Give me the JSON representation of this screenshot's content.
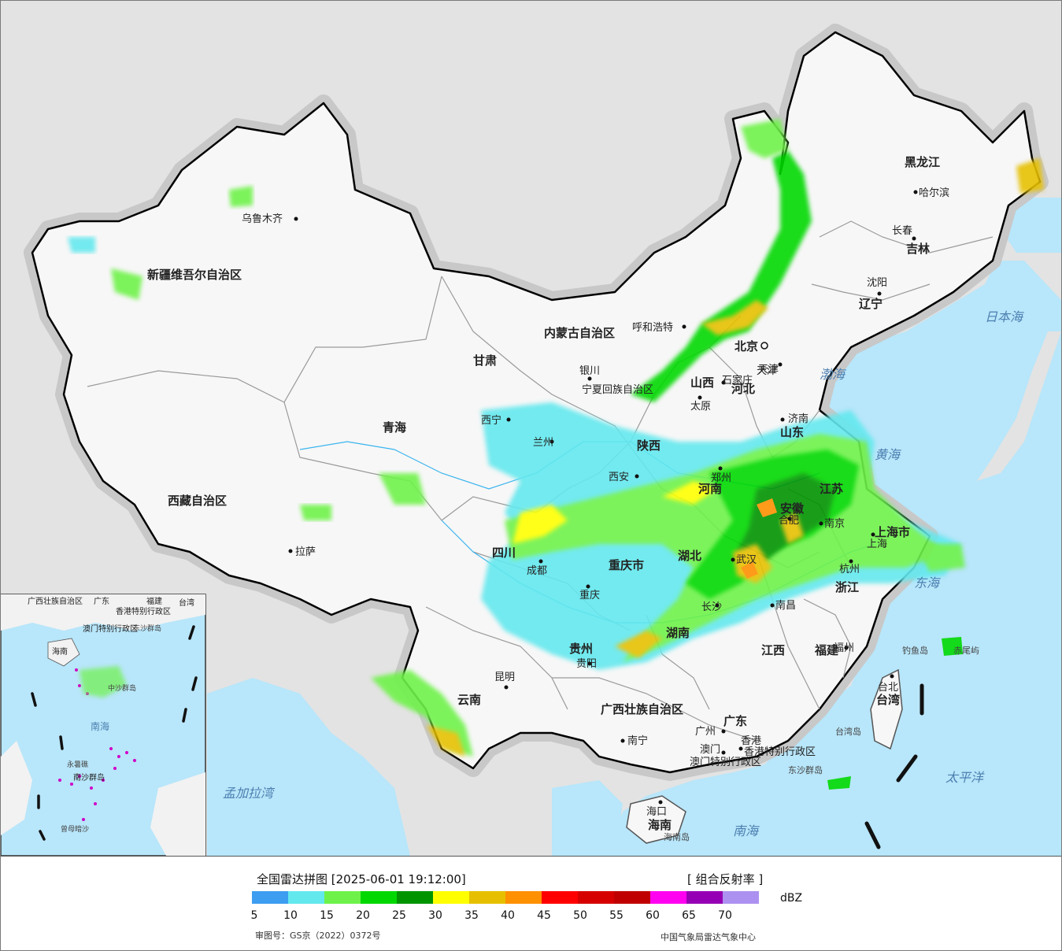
{
  "legend": {
    "title": "全国雷达拼图 [2025-06-01 19:12:00]",
    "product": "[ 组合反射率 ]",
    "unit": "dBZ",
    "ticks": [
      "5",
      "10",
      "15",
      "20",
      "25",
      "30",
      "35",
      "40",
      "45",
      "50",
      "55",
      "60",
      "65",
      "70"
    ],
    "colors": [
      "#3d9df0",
      "#63e8ee",
      "#6ef24a",
      "#00d800",
      "#009400",
      "#ffff00",
      "#e6c000",
      "#ff9000",
      "#ff0000",
      "#d60000",
      "#c00000",
      "#ff00f0",
      "#9600b4",
      "#ad91f0"
    ],
    "approval": "审图号：GS京（2022）0372号",
    "source": "中国气象局雷达气象中心"
  },
  "map": {
    "colors": {
      "land": "#f7f7f7",
      "outside": "#e3e3e3",
      "sea": "#b8e6fa",
      "border": "#000000",
      "province": "#9a9a9a"
    },
    "provinces": [
      "新疆维吾尔自治区",
      "西藏自治区",
      "青海",
      "甘肃",
      "内蒙古自治区",
      "黑龙江",
      "吉林",
      "辽宁",
      "河北",
      "山西",
      "陕西",
      "四川",
      "重庆市",
      "云南",
      "贵州",
      "广西壮族自治区",
      "广东",
      "湖南",
      "湖北",
      "河南",
      "山东",
      "江苏",
      "安徽",
      "浙江",
      "江西",
      "福建",
      "台湾",
      "海南",
      "宁夏回族自治区",
      "上海市",
      "天津",
      "香港特别行政区",
      "澳门特别行政区"
    ],
    "cities": [
      "乌鲁木齐",
      "拉萨",
      "西宁",
      "兰州",
      "银川",
      "呼和浩特",
      "北京",
      "天津",
      "石家庄",
      "太原",
      "济南",
      "郑州",
      "西安",
      "成都",
      "重庆",
      "贵阳",
      "昆明",
      "长沙",
      "武汉",
      "合肥",
      "南京",
      "上海",
      "杭州",
      "南昌",
      "福州",
      "台北",
      "广州",
      "香港",
      "澳门",
      "南宁",
      "海口",
      "哈尔滨",
      "长春",
      "沈阳"
    ],
    "seas": [
      "日本海",
      "渤海",
      "黄海",
      "东海",
      "太平洋",
      "南海",
      "孟加拉湾"
    ],
    "islands": [
      "钓鱼岛",
      "赤尾屿",
      "台湾岛",
      "东沙群岛",
      "海南岛"
    ],
    "inset_labels": [
      "广西壮族自治区",
      "广东",
      "福建",
      "台湾",
      "香港特别行政区",
      "澳门特别行政区",
      "海南",
      "东沙群岛",
      "中沙群岛",
      "南海",
      "永暑礁",
      "南沙群岛",
      "曾母暗沙"
    ]
  }
}
